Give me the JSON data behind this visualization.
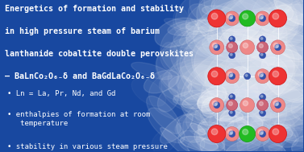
{
  "bg_color": "#1848a0",
  "title_lines": [
    "Energetics of formation and stability",
    "in high pressure steam of barium",
    "lanthanide cobaltite double perovskites"
  ],
  "formula_text": "– BaLnCo₂O₆₋δ and BaGdLaCo₂O₆₋δ",
  "bullet_points": [
    "Ln = La, Pr, Nd, and Gd",
    "enthalpies of formation at room\n   temperature",
    "stability in various steam pressure"
  ],
  "text_color": "#ffffff",
  "title_fontsize": 7.2,
  "formula_fontsize": 6.8,
  "bullet_fontsize": 6.5,
  "font_family": "monospace",
  "ba_color": "#ee3333",
  "ln_color": "#22bb22",
  "ba_face_color": "#ee8888",
  "co_color": "#cc6677",
  "o_color": "#3355aa",
  "steam_color": "#c8d8ee"
}
